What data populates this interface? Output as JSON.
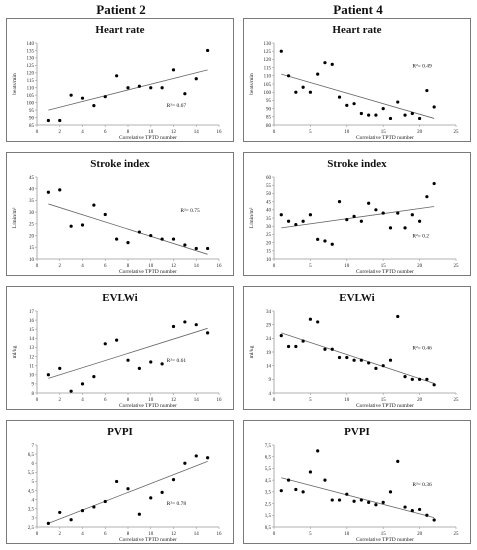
{
  "columns": [
    "Patient 2",
    "Patient 4"
  ],
  "chart_data": [
    {
      "type": "scatter",
      "title": "Heart rate",
      "ylabel": "beats/min",
      "xlabel": "Correlative TPTD number",
      "xlim": [
        0,
        16
      ],
      "ylim": [
        85,
        140
      ],
      "xticks": [
        0,
        2,
        4,
        6,
        8,
        10,
        12,
        14,
        16
      ],
      "yticks": [
        85,
        90,
        95,
        100,
        105,
        110,
        115,
        120,
        125,
        130,
        135,
        140
      ],
      "points": [
        [
          1,
          88
        ],
        [
          2,
          88
        ],
        [
          3,
          105
        ],
        [
          4,
          103
        ],
        [
          5,
          98
        ],
        [
          6,
          104
        ],
        [
          7,
          118
        ],
        [
          8,
          110
        ],
        [
          9,
          111
        ],
        [
          10,
          110
        ],
        [
          11,
          110
        ],
        [
          12,
          122
        ],
        [
          13,
          106
        ],
        [
          14,
          116
        ],
        [
          15,
          135
        ]
      ],
      "trend": [
        [
          1,
          95
        ],
        [
          15,
          122
        ]
      ],
      "r2": "R²= 0.67",
      "r2_pos": [
        11.4,
        97
      ]
    },
    {
      "type": "scatter",
      "title": "Heart rate",
      "ylabel": "beats/min",
      "xlabel": "Correlative TPTD number",
      "xlim": [
        0,
        25
      ],
      "ylim": [
        80,
        130
      ],
      "xticks": [
        0,
        5,
        10,
        15,
        20,
        25
      ],
      "yticks": [
        80,
        85,
        90,
        95,
        100,
        105,
        110,
        115,
        120,
        125,
        130
      ],
      "points": [
        [
          1,
          125
        ],
        [
          2,
          110
        ],
        [
          3,
          100
        ],
        [
          4,
          103
        ],
        [
          5,
          100
        ],
        [
          6,
          111
        ],
        [
          7,
          118
        ],
        [
          8,
          117
        ],
        [
          9,
          97
        ],
        [
          10,
          92
        ],
        [
          11,
          93
        ],
        [
          12,
          87
        ],
        [
          13,
          86
        ],
        [
          14,
          86
        ],
        [
          15,
          90
        ],
        [
          16,
          84
        ],
        [
          17,
          94
        ],
        [
          18,
          86
        ],
        [
          19,
          87
        ],
        [
          20,
          84
        ],
        [
          21,
          101
        ],
        [
          22,
          91
        ]
      ],
      "trend": [
        [
          1,
          111
        ],
        [
          22,
          84
        ]
      ],
      "r2": "R²= 0.49",
      "r2_pos": [
        19,
        115
      ]
    },
    {
      "type": "scatter",
      "title": "Stroke index",
      "ylabel": "L/min/m²",
      "xlabel": "Correlative TPTD number",
      "xlim": [
        0,
        16
      ],
      "ylim": [
        10,
        45
      ],
      "xticks": [
        0,
        2,
        4,
        6,
        8,
        10,
        12,
        14,
        16
      ],
      "yticks": [
        10,
        15,
        20,
        25,
        30,
        35,
        40,
        45
      ],
      "points": [
        [
          1,
          38.5
        ],
        [
          2,
          39.5
        ],
        [
          3,
          24
        ],
        [
          4,
          24.5
        ],
        [
          5,
          33
        ],
        [
          6,
          29
        ],
        [
          7,
          18.5
        ],
        [
          8,
          17
        ],
        [
          9,
          21.5
        ],
        [
          10,
          20
        ],
        [
          11,
          18.5
        ],
        [
          12,
          18.5
        ],
        [
          13,
          16
        ],
        [
          14,
          14.5
        ],
        [
          15,
          14.5
        ]
      ],
      "trend": [
        [
          1,
          33.5
        ],
        [
          15,
          12
        ]
      ],
      "r2": "R²= 0.75",
      "r2_pos": [
        12.6,
        30
      ]
    },
    {
      "type": "scatter",
      "title": "Stroke index",
      "ylabel": "L/min/m²",
      "xlabel": "Correlative TPTD number",
      "xlim": [
        0,
        25
      ],
      "ylim": [
        10,
        60
      ],
      "xticks": [
        0,
        5,
        10,
        15,
        20,
        25
      ],
      "yticks": [
        10,
        15,
        20,
        25,
        30,
        35,
        40,
        45,
        50,
        55,
        60
      ],
      "points": [
        [
          1,
          37
        ],
        [
          2,
          33
        ],
        [
          3,
          31
        ],
        [
          4,
          33
        ],
        [
          5,
          37
        ],
        [
          6,
          22
        ],
        [
          7,
          21
        ],
        [
          8,
          19
        ],
        [
          9,
          45
        ],
        [
          10,
          34
        ],
        [
          11,
          36
        ],
        [
          12,
          33
        ],
        [
          13,
          44
        ],
        [
          14,
          40
        ],
        [
          15,
          38
        ],
        [
          16,
          29
        ],
        [
          17,
          38
        ],
        [
          18,
          29
        ],
        [
          19,
          37
        ],
        [
          20,
          33
        ],
        [
          21,
          48
        ],
        [
          22,
          56
        ]
      ],
      "trend": [
        [
          1,
          29
        ],
        [
          22,
          42
        ]
      ],
      "r2": "R²= 0.2",
      "r2_pos": [
        19,
        23
      ]
    },
    {
      "type": "scatter",
      "title": "EVLWi",
      "ylabel": "ml/kg",
      "xlabel": "Correlative TPTD number",
      "xlim": [
        0,
        16
      ],
      "ylim": [
        8,
        17
      ],
      "xticks": [
        0,
        2,
        4,
        6,
        8,
        10,
        12,
        14,
        16
      ],
      "yticks": [
        8,
        9,
        10,
        11,
        12,
        13,
        14,
        15,
        16,
        17
      ],
      "points": [
        [
          1,
          10
        ],
        [
          2,
          10.7
        ],
        [
          3,
          8.2
        ],
        [
          4,
          9
        ],
        [
          5,
          9.8
        ],
        [
          6,
          13.4
        ],
        [
          7,
          13.8
        ],
        [
          8,
          11.6
        ],
        [
          9,
          10.7
        ],
        [
          10,
          11.4
        ],
        [
          11,
          11.2
        ],
        [
          12,
          15.3
        ],
        [
          13,
          15.8
        ],
        [
          14,
          15.5
        ],
        [
          15,
          14.6
        ]
      ],
      "trend": [
        [
          1,
          9.6
        ],
        [
          15,
          15.1
        ]
      ],
      "r2": "R²= 0.61",
      "r2_pos": [
        11.4,
        11.4
      ]
    },
    {
      "type": "scatter",
      "title": "EVLWi",
      "ylabel": "ml/kg",
      "xlabel": "Correlative TPTD number",
      "xlim": [
        0,
        25
      ],
      "ylim": [
        4,
        34
      ],
      "xticks": [
        0,
        5,
        10,
        15,
        20,
        25
      ],
      "yticks": [
        4,
        9,
        14,
        19,
        24,
        29,
        34
      ],
      "points": [
        [
          1,
          25
        ],
        [
          2,
          21
        ],
        [
          3,
          21
        ],
        [
          4,
          23
        ],
        [
          5,
          31
        ],
        [
          6,
          30
        ],
        [
          7,
          20
        ],
        [
          8,
          20
        ],
        [
          9,
          17
        ],
        [
          10,
          17
        ],
        [
          11,
          16
        ],
        [
          12,
          16
        ],
        [
          13,
          15
        ],
        [
          14,
          13
        ],
        [
          15,
          14
        ],
        [
          16,
          16
        ],
        [
          17,
          32
        ],
        [
          18,
          10
        ],
        [
          19,
          9
        ],
        [
          20,
          9
        ],
        [
          21,
          9
        ],
        [
          22,
          7
        ]
      ],
      "trend": [
        [
          1,
          26
        ],
        [
          22,
          7.5
        ]
      ],
      "r2": "R²= 0.46",
      "r2_pos": [
        19,
        20
      ]
    },
    {
      "type": "scatter",
      "title": "PVPI",
      "ylabel": "",
      "xlabel": "Correlative TPTD number",
      "xlim": [
        0,
        16
      ],
      "ylim": [
        2.5,
        7
      ],
      "xticks": [
        0,
        2,
        4,
        6,
        8,
        10,
        12,
        14,
        16
      ],
      "yticks": [
        2.5,
        3,
        3.5,
        4,
        4.5,
        5,
        5.5,
        6,
        6.5,
        7
      ],
      "ytick_labels": [
        "2,5",
        "3",
        "3,5",
        "4",
        "4,5",
        "5",
        "5,5",
        "6",
        "6,5",
        "7"
      ],
      "points": [
        [
          1,
          2.7
        ],
        [
          2,
          3.3
        ],
        [
          3,
          2.9
        ],
        [
          4,
          3.4
        ],
        [
          5,
          3.6
        ],
        [
          6,
          3.9
        ],
        [
          7,
          5
        ],
        [
          8,
          4.6
        ],
        [
          9,
          3.2
        ],
        [
          10,
          4.1
        ],
        [
          11,
          4.4
        ],
        [
          12,
          5.1
        ],
        [
          13,
          6
        ],
        [
          14,
          6.4
        ],
        [
          15,
          6.3
        ]
      ],
      "trend": [
        [
          1,
          2.7
        ],
        [
          15,
          6.1
        ]
      ],
      "r2": "R²= 0.78",
      "r2_pos": [
        11.4,
        3.7
      ]
    },
    {
      "type": "scatter",
      "title": "PVPI",
      "ylabel": "",
      "xlabel": "Correlative TPTD number",
      "xlim": [
        0,
        25
      ],
      "ylim": [
        0.5,
        7.5
      ],
      "xticks": [
        0,
        5,
        10,
        15,
        20,
        25
      ],
      "yticks": [
        0.5,
        1.5,
        2.5,
        3.5,
        4.5,
        5.5,
        6.5,
        7.5
      ],
      "ytick_labels": [
        "0,5",
        "1,5",
        "2,5",
        "3,5",
        "4,5",
        "5,5",
        "6,5",
        "7,5"
      ],
      "points": [
        [
          1,
          3.6
        ],
        [
          2,
          4.5
        ],
        [
          3,
          3.7
        ],
        [
          4,
          3.5
        ],
        [
          5,
          5.2
        ],
        [
          6,
          7
        ],
        [
          7,
          4.5
        ],
        [
          8,
          2.8
        ],
        [
          9,
          2.8
        ],
        [
          10,
          3.3
        ],
        [
          11,
          2.7
        ],
        [
          12,
          2.8
        ],
        [
          13,
          2.6
        ],
        [
          14,
          2.4
        ],
        [
          15,
          2.6
        ],
        [
          16,
          3.5
        ],
        [
          17,
          6.1
        ],
        [
          18,
          2.2
        ],
        [
          19,
          1.9
        ],
        [
          20,
          2.0
        ],
        [
          21,
          1.5
        ],
        [
          22,
          1.1
        ]
      ],
      "trend": [
        [
          1,
          4.7
        ],
        [
          22,
          1.3
        ]
      ],
      "r2": "R²= 0.36",
      "r2_pos": [
        19,
        4
      ]
    }
  ]
}
